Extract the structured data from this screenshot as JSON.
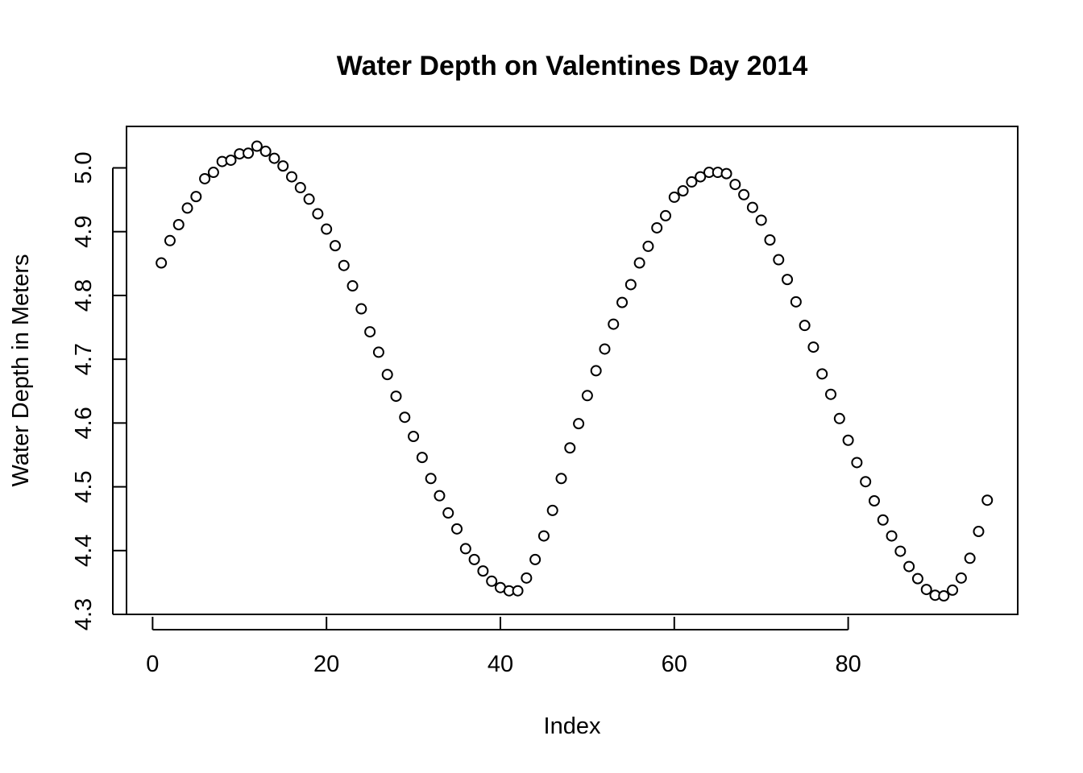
{
  "chart_data": {
    "type": "scatter",
    "title": "Water Depth on Valentines Day 2014",
    "xlabel": "Index",
    "ylabel": "Water Depth in Meters",
    "xlim": [
      -3.0,
      99.5
    ],
    "ylim": [
      4.3,
      5.065
    ],
    "xticks": [
      0,
      20,
      40,
      60,
      80
    ],
    "xtick_labels": [
      "0",
      "20",
      "40",
      "60",
      "80"
    ],
    "yticks": [
      4.3,
      4.4,
      4.5,
      4.6,
      4.7,
      4.8,
      4.9,
      5.0
    ],
    "ytick_labels": [
      "4.3",
      "4.4",
      "4.5",
      "4.6",
      "4.7",
      "4.8",
      "4.9",
      "5.0"
    ],
    "grid": false,
    "legend": "none",
    "point_style": "open-circle",
    "series": [
      {
        "x": [
          1,
          2,
          3,
          4,
          5,
          6,
          7,
          8,
          9,
          10,
          11,
          12,
          13,
          14,
          15,
          16,
          17,
          18,
          19,
          20,
          21,
          22,
          23,
          24,
          25,
          26,
          27,
          28,
          29,
          30,
          31,
          32,
          33,
          34,
          35,
          36,
          37,
          38,
          39,
          40,
          41,
          42,
          43,
          44,
          45,
          46,
          47,
          48,
          49,
          50,
          51,
          52,
          53,
          54,
          55,
          56,
          57,
          58,
          59,
          60,
          61,
          62,
          63,
          64,
          65,
          66,
          67,
          68,
          69,
          70,
          71,
          72,
          73,
          74,
          75,
          76,
          77,
          78,
          79,
          80,
          81,
          82,
          83,
          84,
          85,
          86,
          87,
          88,
          89,
          90,
          91,
          92,
          93,
          94,
          95,
          96
        ],
        "values": [
          4.851,
          4.886,
          4.911,
          4.937,
          4.955,
          4.983,
          4.993,
          5.01,
          5.012,
          5.022,
          5.023,
          5.034,
          5.026,
          5.015,
          5.003,
          4.986,
          4.969,
          4.951,
          4.928,
          4.904,
          4.878,
          4.847,
          4.815,
          4.779,
          4.743,
          4.711,
          4.676,
          4.642,
          4.609,
          4.579,
          4.546,
          4.513,
          4.486,
          4.459,
          4.434,
          4.403,
          4.386,
          4.368,
          4.352,
          4.342,
          4.337,
          4.337,
          4.357,
          4.386,
          4.423,
          4.463,
          4.513,
          4.561,
          4.599,
          4.643,
          4.682,
          4.716,
          4.755,
          4.789,
          4.817,
          4.851,
          4.877,
          4.906,
          4.925,
          4.954,
          4.964,
          4.978,
          4.986,
          4.993,
          4.993,
          4.991,
          4.974,
          4.958,
          4.938,
          4.918,
          4.887,
          4.856,
          4.825,
          4.79,
          4.753,
          4.719,
          4.677,
          4.645,
          4.607,
          4.573,
          4.538,
          4.508,
          4.478,
          4.448,
          4.423,
          4.399,
          4.375,
          4.356,
          4.339,
          4.33,
          4.329,
          4.338,
          4.357,
          4.388,
          4.43,
          4.479
        ]
      }
    ]
  }
}
